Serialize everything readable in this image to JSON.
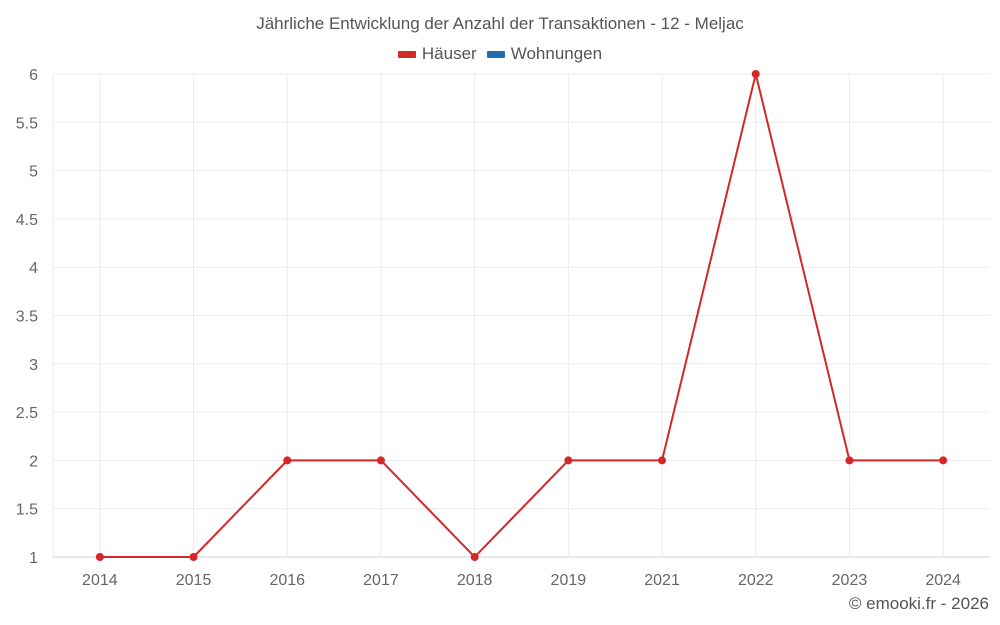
{
  "chart": {
    "title": "Jährliche Entwicklung der Anzahl der Transaktionen - 12 - Meljac",
    "credit": "© emooki.fr - 2026",
    "legend": [
      {
        "name": "Häuser",
        "color": "#d62728"
      },
      {
        "name": "Wohnungen",
        "color": "#1f6fae"
      }
    ]
  },
  "chart_data": {
    "type": "line",
    "title": "Jährliche Entwicklung der Anzahl der Transaktionen - 12 - Meljac",
    "xlabel": "",
    "ylabel": "",
    "categories": [
      "2014",
      "2015",
      "2016",
      "2017",
      "2018",
      "2019",
      "2021",
      "2022",
      "2023",
      "2024"
    ],
    "series": [
      {
        "name": "Häuser",
        "color": "#d62728",
        "values": [
          1,
          1,
          2,
          2,
          1,
          2,
          2,
          6,
          2,
          2
        ]
      },
      {
        "name": "Wohnungen",
        "color": "#1f6fae",
        "values": []
      }
    ],
    "ylim": [
      1,
      6
    ],
    "yticks": [
      "1",
      "1.5",
      "2",
      "2.5",
      "3",
      "3.5",
      "4",
      "4.5",
      "5",
      "5.5",
      "6"
    ],
    "grid": true,
    "legend_position": "top"
  }
}
